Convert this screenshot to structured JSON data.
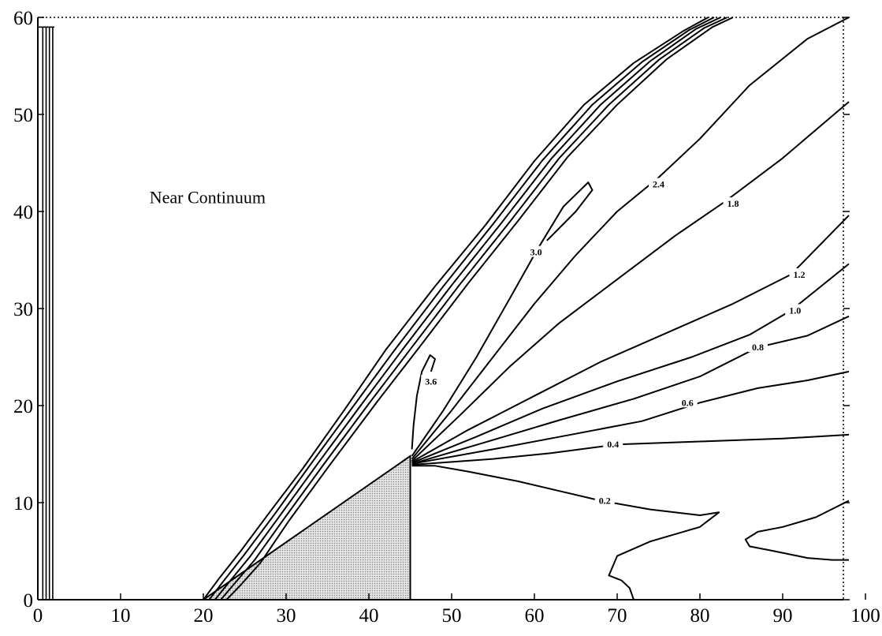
{
  "chart_data": {
    "type": "contour",
    "title": "",
    "xlabel": "",
    "ylabel": "",
    "xlim": [
      0,
      100
    ],
    "ylim": [
      0,
      60
    ],
    "grid": false,
    "x_ticks": [
      0,
      10,
      20,
      30,
      40,
      50,
      60,
      70,
      80,
      90,
      100
    ],
    "y_ticks": [
      0,
      10,
      20,
      30,
      40,
      50,
      60
    ],
    "annotations": [
      {
        "text": "Near Continuum",
        "x": 13.5,
        "y": 41.5
      }
    ],
    "body": {
      "shape": "wedge",
      "vertices": [
        [
          20,
          0
        ],
        [
          45,
          0
        ],
        [
          45,
          14.8
        ]
      ],
      "fill": "#c8c8c8"
    },
    "contours": [
      {
        "label": "3.6",
        "label_at": [
          47.5,
          22.5
        ],
        "points": [
          [
            45.2,
            15.5
          ],
          [
            45.4,
            18
          ],
          [
            45.8,
            21
          ],
          [
            46.4,
            23.5
          ],
          [
            47.4,
            25.2
          ],
          [
            48,
            24.8
          ],
          [
            47.5,
            23.5
          ]
        ]
      },
      {
        "label": "3.0",
        "label_at": [
          60.2,
          35.8
        ],
        "points": [
          [
            45.2,
            14.8
          ],
          [
            49,
            19.5
          ],
          [
            53,
            25
          ],
          [
            57,
            31
          ],
          [
            60.3,
            36
          ],
          [
            63.5,
            40.5
          ],
          [
            66.5,
            43
          ],
          [
            67,
            42.2
          ],
          [
            65,
            40
          ],
          [
            61.5,
            37
          ]
        ]
      },
      {
        "label": "2.4",
        "label_at": [
          75,
          42.8
        ],
        "points": [
          [
            45.2,
            14.5
          ],
          [
            50,
            19.5
          ],
          [
            55,
            25
          ],
          [
            60,
            30.5
          ],
          [
            65,
            35.5
          ],
          [
            70,
            40
          ],
          [
            75,
            43.5
          ],
          [
            80,
            47.5
          ],
          [
            86,
            53
          ],
          [
            93,
            57.8
          ],
          [
            98,
            60
          ]
        ]
      },
      {
        "label": "1.8",
        "label_at": [
          84,
          40.8
        ],
        "points": [
          [
            45.2,
            14.3
          ],
          [
            51,
            19
          ],
          [
            57,
            24
          ],
          [
            63,
            28.5
          ],
          [
            70,
            33
          ],
          [
            77,
            37.5
          ],
          [
            83,
            41
          ],
          [
            90,
            45.5
          ],
          [
            98,
            51.3
          ]
        ]
      },
      {
        "label": "1.2",
        "label_at": [
          92,
          33.5
        ],
        "points": [
          [
            45.2,
            14.2
          ],
          [
            52,
            17.5
          ],
          [
            60,
            21
          ],
          [
            68,
            24.5
          ],
          [
            76,
            27.5
          ],
          [
            84,
            30.5
          ],
          [
            91,
            33.5
          ],
          [
            98,
            39.6
          ]
        ]
      },
      {
        "label": "1.0",
        "label_at": [
          91.5,
          29.8
        ],
        "points": [
          [
            45.2,
            14.1
          ],
          [
            53,
            16.8
          ],
          [
            61,
            19.7
          ],
          [
            70,
            22.5
          ],
          [
            79,
            25
          ],
          [
            86,
            27.3
          ],
          [
            91,
            29.8
          ],
          [
            98,
            34.6
          ]
        ]
      },
      {
        "label": "0.8",
        "label_at": [
          87,
          26
        ],
        "points": [
          [
            45.2,
            14
          ],
          [
            54,
            16.2
          ],
          [
            63,
            18.5
          ],
          [
            72,
            20.7
          ],
          [
            80,
            23
          ],
          [
            87,
            26
          ],
          [
            93,
            27.2
          ],
          [
            98,
            29.2
          ]
        ]
      },
      {
        "label": "0.6",
        "label_at": [
          78.5,
          20.3
        ],
        "points": [
          [
            45.2,
            14
          ],
          [
            55,
            15.5
          ],
          [
            65,
            17.1
          ],
          [
            73,
            18.4
          ],
          [
            80,
            20.3
          ],
          [
            87,
            21.8
          ],
          [
            93,
            22.6
          ],
          [
            98,
            23.5
          ]
        ]
      },
      {
        "label": "0.4",
        "label_at": [
          69.5,
          16
        ],
        "points": [
          [
            45.2,
            13.9
          ],
          [
            55,
            14.5
          ],
          [
            62,
            15.1
          ],
          [
            70,
            16
          ],
          [
            80,
            16.3
          ],
          [
            90,
            16.6
          ],
          [
            98,
            17
          ]
        ]
      },
      {
        "label": "0.2",
        "label_at": [
          68.5,
          10.2
        ],
        "points": [
          [
            45.2,
            13.8
          ],
          [
            48,
            13.8
          ],
          [
            52,
            13.2
          ],
          [
            58,
            12.2
          ],
          [
            63,
            11.2
          ],
          [
            68,
            10.2
          ],
          [
            74,
            9.3
          ],
          [
            80,
            8.7
          ],
          [
            82.3,
            9
          ],
          [
            80,
            7.5
          ],
          [
            74,
            6
          ],
          [
            70,
            4.5
          ],
          [
            69,
            2.5
          ],
          [
            70.5,
            2
          ],
          [
            71.5,
            1.2
          ],
          [
            72,
            0
          ]
        ]
      },
      {
        "label": "",
        "points": [
          [
            98,
            10.2
          ],
          [
            94,
            8.5
          ],
          [
            90,
            7.5
          ],
          [
            87,
            7
          ],
          [
            85.5,
            6.2
          ],
          [
            86,
            5.5
          ],
          [
            89,
            5
          ],
          [
            93,
            4.3
          ],
          [
            96,
            4.1
          ],
          [
            98,
            4.1
          ]
        ]
      },
      {
        "label": "",
        "points": [
          [
            20,
            0
          ],
          [
            22,
            2.3
          ],
          [
            24.5,
            5
          ],
          [
            28,
            9
          ],
          [
            32,
            13.5
          ],
          [
            37,
            19.5
          ],
          [
            42,
            25.7
          ],
          [
            48,
            32.3
          ],
          [
            54,
            38.5
          ],
          [
            60,
            45.2
          ],
          [
            66,
            51
          ],
          [
            72,
            55.3
          ],
          [
            78,
            58.6
          ],
          [
            81,
            60
          ]
        ]
      },
      {
        "label": "",
        "points": [
          [
            20.7,
            0
          ],
          [
            22.6,
            2.1
          ],
          [
            25,
            4.7
          ],
          [
            28.6,
            8.8
          ],
          [
            33,
            14
          ],
          [
            38,
            19.8
          ],
          [
            43,
            25.6
          ],
          [
            49,
            32.3
          ],
          [
            55,
            38.7
          ],
          [
            61,
            45.3
          ],
          [
            67,
            51
          ],
          [
            73,
            55.4
          ],
          [
            78.7,
            58.7
          ],
          [
            81.7,
            60
          ]
        ]
      },
      {
        "label": "",
        "points": [
          [
            21.4,
            0
          ],
          [
            23.2,
            1.9
          ],
          [
            25.6,
            4.4
          ],
          [
            29.2,
            8.6
          ],
          [
            33.8,
            14
          ],
          [
            39,
            20
          ],
          [
            44,
            25.7
          ],
          [
            50,
            32.4
          ],
          [
            56,
            38.8
          ],
          [
            62,
            45.4
          ],
          [
            68,
            51
          ],
          [
            74,
            55.5
          ],
          [
            79.5,
            58.8
          ],
          [
            82.5,
            60
          ]
        ]
      },
      {
        "label": "",
        "points": [
          [
            22.1,
            0
          ],
          [
            23.8,
            1.7
          ],
          [
            26.2,
            4.1
          ],
          [
            29.8,
            8.4
          ],
          [
            34.5,
            13.9
          ],
          [
            40,
            20.2
          ],
          [
            45,
            25.8
          ],
          [
            51,
            32.5
          ],
          [
            57,
            38.9
          ],
          [
            63,
            45.5
          ],
          [
            69,
            51
          ],
          [
            75,
            55.6
          ],
          [
            80.5,
            58.9
          ],
          [
            83.3,
            60
          ]
        ]
      },
      {
        "label": "",
        "points": [
          [
            22.8,
            0
          ],
          [
            24.5,
            1.5
          ],
          [
            26.9,
            3.8
          ],
          [
            30.4,
            8.2
          ],
          [
            35.2,
            13.8
          ],
          [
            41,
            20.4
          ],
          [
            46,
            25.9
          ],
          [
            52,
            32.6
          ],
          [
            58,
            39
          ],
          [
            64,
            45.6
          ],
          [
            70,
            51
          ],
          [
            76,
            55.7
          ],
          [
            81.5,
            59
          ],
          [
            84,
            60
          ]
        ]
      }
    ]
  }
}
